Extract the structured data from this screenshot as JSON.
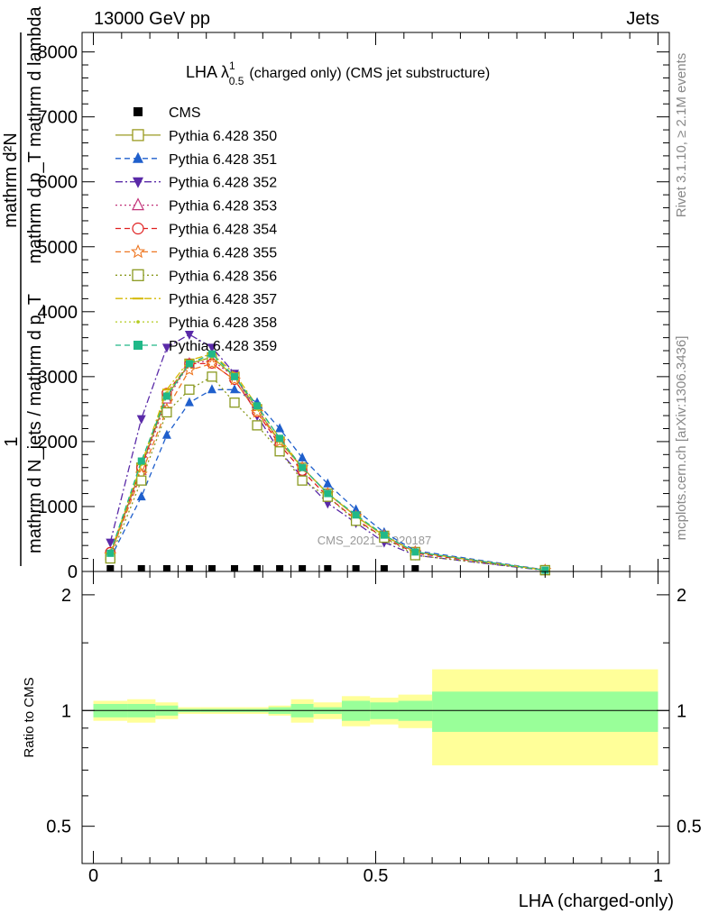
{
  "header": {
    "left": "13000 GeV pp",
    "right": "Jets"
  },
  "side": {
    "rivet": "Rivet 3.1.10, ≥ 2.1M events",
    "mcplots": "mcplots.cern.ch [arXiv:1306.3436]"
  },
  "watermark": "CMS_2021_I1920187",
  "ylabel_main": {
    "numerator": "1",
    "denominator": "mathrm d N_{\\mathrm{jets}}/\\mathrm d p_\\mathrm{T} mathrm d p_\\mathrm{T} mathrm d lambda",
    "line_a": "mathrm d²N",
    "line_b": "mathrm d p_T mathrm d lambda",
    "line_c": "mathrm d N_jets / mathrm d p_T"
  },
  "ylabel_ratio": "Ratio to CMS",
  "xlabel": "LHA (charged-only)",
  "title": {
    "prefix": "LHA λ",
    "sup": "1",
    "sub": "0.5",
    "suffix": "(charged only) (CMS jet substructure)"
  },
  "chart_data": {
    "type": "line",
    "xlim": [
      -0.02,
      1.02
    ],
    "ylim": [
      0,
      8300
    ],
    "y_ticks": [
      0,
      1000,
      2000,
      3000,
      4000,
      5000,
      6000,
      7000,
      8000
    ],
    "x_ticks": [
      "0",
      "0.5",
      "1"
    ],
    "ratio_ylim": [
      0.4,
      2.3
    ],
    "ratio_ticks": [
      "0.5",
      "1",
      "2"
    ],
    "x": [
      0.03,
      0.085,
      0.13,
      0.17,
      0.21,
      0.25,
      0.29,
      0.33,
      0.37,
      0.415,
      0.465,
      0.515,
      0.57,
      0.8
    ],
    "cms": [
      0,
      0,
      0,
      0,
      0,
      0,
      0,
      0,
      0,
      0,
      0,
      0,
      0,
      0
    ],
    "series": [
      {
        "name": "Pythia 6.428 350",
        "color": "#9a9a20",
        "dash": "",
        "marker": "square-open",
        "values": [
          250,
          1600,
          2700,
          3200,
          3300,
          3000,
          2500,
          2000,
          1600,
          1200,
          850,
          550,
          300,
          20
        ]
      },
      {
        "name": "Pythia 6.428 351",
        "color": "#1f5fcc",
        "dash": "6,4",
        "marker": "triangle-up",
        "values": [
          200,
          1150,
          2100,
          2600,
          2800,
          2800,
          2600,
          2200,
          1750,
          1350,
          950,
          600,
          320,
          25
        ]
      },
      {
        "name": "Pythia 6.428 352",
        "color": "#5a2aa8",
        "dash": "8,3,2,3",
        "marker": "triangle-down",
        "values": [
          450,
          2350,
          3450,
          3650,
          3450,
          3050,
          2400,
          1850,
          1450,
          1050,
          750,
          450,
          250,
          15
        ]
      },
      {
        "name": "Pythia 6.428 353",
        "color": "#c2347a",
        "dash": "2,3",
        "marker": "triangle-open",
        "values": [
          250,
          1550,
          2650,
          3200,
          3250,
          3000,
          2500,
          2000,
          1600,
          1200,
          850,
          550,
          300,
          20
        ]
      },
      {
        "name": "Pythia 6.428 354",
        "color": "#e02020",
        "dash": "6,4",
        "marker": "circle-open",
        "values": [
          300,
          1600,
          2750,
          3200,
          3200,
          2950,
          2450,
          1950,
          1550,
          1150,
          800,
          520,
          280,
          20
        ]
      },
      {
        "name": "Pythia 6.428 355",
        "color": "#ee7722",
        "dash": "6,4",
        "marker": "star-open",
        "values": [
          260,
          1500,
          2500,
          3100,
          3200,
          2950,
          2450,
          2000,
          1600,
          1200,
          850,
          550,
          300,
          20
        ]
      },
      {
        "name": "Pythia 6.428 356",
        "color": "#8a9a20",
        "dash": "2,3",
        "marker": "square-open",
        "values": [
          200,
          1400,
          2450,
          2800,
          3000,
          2600,
          2250,
          1850,
          1400,
          1150,
          780,
          520,
          250,
          20
        ]
      },
      {
        "name": "Pythia 6.428 357",
        "color": "#d4b800",
        "dash": "8,3,2,3",
        "marker": "dash",
        "values": [
          280,
          1650,
          2800,
          3250,
          3350,
          3050,
          2550,
          2050,
          1600,
          1200,
          850,
          550,
          300,
          20
        ]
      },
      {
        "name": "Pythia 6.428 358",
        "color": "#b4cc20",
        "dash": "2,3",
        "marker": "dot",
        "values": [
          270,
          1650,
          2750,
          3200,
          3300,
          3000,
          2500,
          2000,
          1600,
          1200,
          850,
          550,
          300,
          20
        ]
      },
      {
        "name": "Pythia 6.428 359",
        "color": "#20b888",
        "dash": "6,4",
        "marker": "square-filled",
        "values": [
          280,
          1700,
          2700,
          3200,
          3350,
          3000,
          2550,
          2050,
          1600,
          1200,
          870,
          560,
          300,
          20
        ]
      }
    ],
    "cms_label": "CMS",
    "ratio_bands": {
      "edges": [
        0,
        0.06,
        0.11,
        0.15,
        0.19,
        0.23,
        0.27,
        0.31,
        0.35,
        0.39,
        0.44,
        0.49,
        0.54,
        0.6,
        1.0
      ],
      "inner": [
        0.04,
        0.04,
        0.03,
        0.01,
        0.01,
        0.01,
        0.01,
        0.02,
        0.04,
        0.02,
        0.06,
        0.05,
        0.06,
        0.12
      ],
      "outer": [
        0.06,
        0.07,
        0.05,
        0.02,
        0.02,
        0.02,
        0.02,
        0.03,
        0.07,
        0.05,
        0.09,
        0.08,
        0.1,
        0.28
      ],
      "inner_color": "#99ff99",
      "outer_color": "#ffff99"
    }
  }
}
